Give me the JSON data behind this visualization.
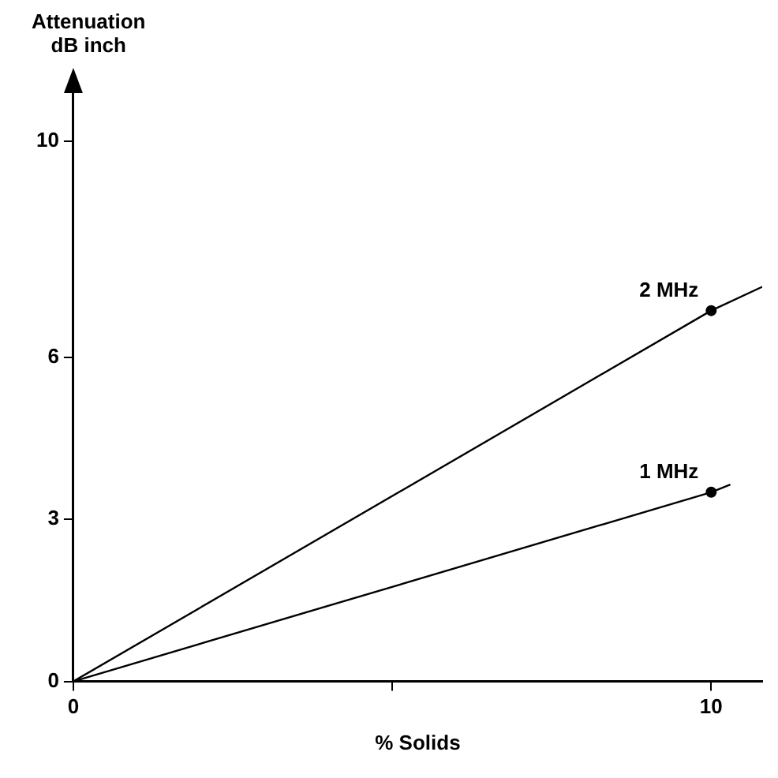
{
  "chart_data": {
    "type": "line",
    "xlabel": "% Solids",
    "ylabel": "Attenuation\ndB inch",
    "xlim": [
      0,
      10.8
    ],
    "ylim": [
      0,
      11
    ],
    "xticks": [
      0,
      {
        "value": 5,
        "label": null
      },
      10
    ],
    "yticks": [
      0,
      3,
      6,
      10
    ],
    "grid": false,
    "legend": false,
    "marker": "none",
    "line_style": "solid",
    "series": [
      {
        "name": "2 MHz",
        "color": "#000000",
        "x": [
          0,
          10,
          10.8
        ],
        "values": [
          0,
          6.86,
          7.3
        ]
      },
      {
        "name": "1 MHz",
        "color": "#000000",
        "x": [
          0,
          10,
          10.3
        ],
        "values": [
          0,
          3.5,
          3.64
        ]
      },
      {
        "type": "scatter",
        "color": "#000000",
        "marker": "circle",
        "x": [
          10,
          10
        ],
        "values": [
          6.86,
          3.5
        ]
      }
    ]
  }
}
